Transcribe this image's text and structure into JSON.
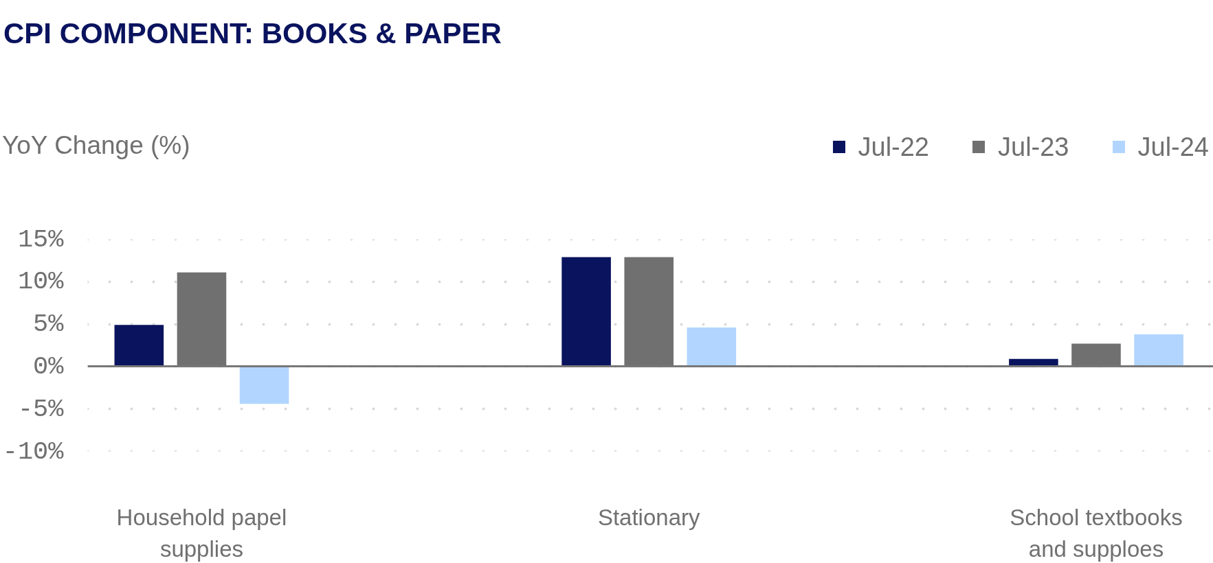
{
  "chart_data": {
    "type": "bar",
    "title": "CPI COMPONENT: BOOKS & PAPER",
    "ylabel": "YoY Change (%)",
    "categories": [
      "Household papel supplies",
      "Stationary",
      "School textbooks and supploes"
    ],
    "series": [
      {
        "name": "Jul-22",
        "color": "#0a135e",
        "values": [
          4.9,
          12.9,
          0.9
        ]
      },
      {
        "name": "Jul-23",
        "color": "#707070",
        "values": [
          11.1,
          12.9,
          2.7
        ]
      },
      {
        "name": "Jul-24",
        "color": "#b1d5fe",
        "values": [
          -4.4,
          4.6,
          3.8
        ]
      }
    ],
    "ylim": [
      -10,
      15
    ],
    "yticks": [
      {
        "value": -10,
        "label": "-10%"
      },
      {
        "value": -5,
        "label": "-5%"
      },
      {
        "value": 0,
        "label": "0%"
      },
      {
        "value": 5,
        "label": "5%"
      },
      {
        "value": 10,
        "label": "10%"
      },
      {
        "value": 15,
        "label": "15%"
      }
    ],
    "grid": "y",
    "legend": "top right"
  }
}
